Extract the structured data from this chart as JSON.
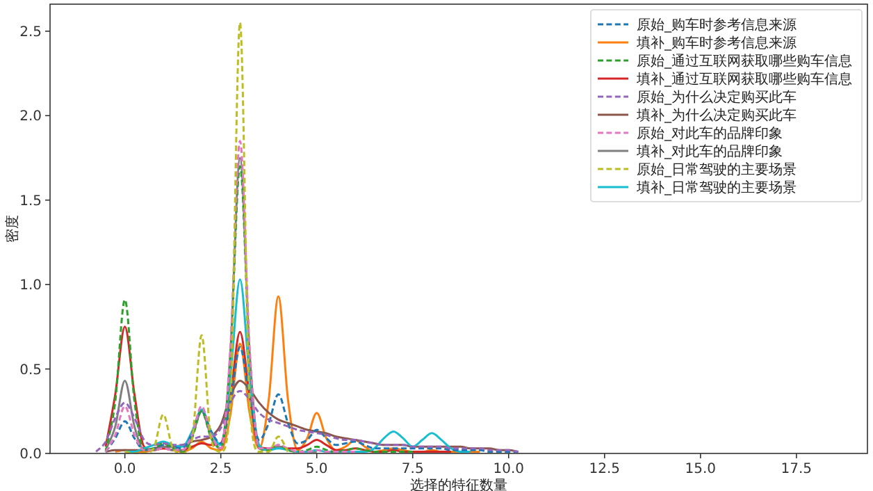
{
  "chart_data": {
    "type": "line",
    "xlabel": "选择的特征数量",
    "ylabel": "密度",
    "xlim": [
      -1.95,
      19.35
    ],
    "xticks": [
      {
        "value": 0,
        "label": "0.0"
      },
      {
        "value": 2.5,
        "label": "2.5"
      },
      {
        "value": 5,
        "label": "5.0"
      },
      {
        "value": 7.5,
        "label": "7.5"
      },
      {
        "value": 10,
        "label": "10.0"
      },
      {
        "value": 12.5,
        "label": "12.5"
      },
      {
        "value": 15,
        "label": "15.0"
      },
      {
        "value": 17.5,
        "label": "17.5"
      }
    ],
    "ylim": [
      0,
      2.66
    ],
    "yticks": [
      {
        "value": 0,
        "label": "0.0"
      },
      {
        "value": 0.5,
        "label": "0.5"
      },
      {
        "value": 1,
        "label": "1.0"
      },
      {
        "value": 1.5,
        "label": "1.5"
      },
      {
        "value": 2,
        "label": "2.0"
      },
      {
        "value": 2.5,
        "label": "2.5"
      }
    ],
    "legend": "top right",
    "x": [
      -0.75,
      -0.5,
      -0.25,
      0,
      0.25,
      0.5,
      0.75,
      1,
      1.25,
      1.5,
      1.75,
      2,
      2.25,
      2.5,
      2.75,
      3,
      3.25,
      3.5,
      3.75,
      4,
      4.25,
      4.5,
      4.75,
      5,
      5.25,
      5.5,
      5.75,
      6,
      6.25,
      6.5,
      6.75,
      7,
      7.25,
      7.5,
      7.75,
      8,
      8.25,
      8.5,
      8.75,
      9,
      9.25,
      9.5,
      9.75,
      10,
      10.25
    ],
    "series": [
      {
        "name": "原始_购车时参考信息来源",
        "color": "#1f77b4",
        "line_style": "dashed",
        "values": [
          null,
          0.01,
          0.09,
          0.19,
          0.09,
          0.02,
          0.03,
          0.05,
          0.04,
          0.03,
          0.12,
          0.25,
          0.13,
          0.06,
          0.3,
          0.63,
          0.32,
          0.08,
          0.18,
          0.35,
          0.18,
          0.06,
          0.08,
          0.14,
          0.09,
          0.05,
          0.06,
          0.07,
          0.05,
          0.03,
          0.03,
          0.03,
          0.03,
          0.03,
          0.03,
          0.03,
          0.03,
          0.02,
          0.02,
          0.02,
          0.02,
          0.01,
          0.01,
          0.01,
          0.01
        ]
      },
      {
        "name": "填补_购车时参考信息来源",
        "color": "#ff7f0e",
        "line_style": "solid",
        "values": [
          null,
          null,
          0.01,
          0.02,
          0.01,
          0.01,
          0.02,
          0.03,
          0.02,
          0.01,
          0.03,
          0.07,
          0.03,
          0.02,
          0.23,
          0.65,
          0.24,
          0.03,
          0.32,
          0.93,
          0.32,
          0.02,
          0.09,
          0.24,
          0.09,
          0.02,
          0.04,
          0.08,
          0.04,
          0.01,
          0.02,
          0.03,
          0.02,
          0.01,
          0.01,
          0.02,
          0.01,
          0.01,
          0.01,
          0.01,
          0.01,
          null,
          null,
          null,
          null
        ]
      },
      {
        "name": "原始_通过互联网获取哪些购车信息",
        "color": "#2ca02c",
        "line_style": "dashed",
        "values": [
          null,
          0.01,
          0.31,
          0.91,
          0.31,
          0.02,
          0.03,
          0.06,
          0.03,
          0.01,
          0.09,
          0.25,
          0.09,
          0.03,
          0.58,
          1.7,
          0.58,
          0.03,
          0.02,
          0.05,
          0.02,
          0.01,
          0.02,
          0.04,
          0.02,
          0.01,
          0.02,
          0.03,
          0.02,
          0.01,
          0.01,
          0.01,
          0.01,
          0.01,
          null,
          null,
          null,
          null,
          null,
          null,
          null,
          null,
          null,
          null,
          null
        ]
      },
      {
        "name": "填补_通过互联网获取哪些购车信息",
        "color": "#d62728",
        "line_style": "solid",
        "values": [
          null,
          0.04,
          0.35,
          0.75,
          0.35,
          0.04,
          0.02,
          0.03,
          0.02,
          0.02,
          0.04,
          0.06,
          0.05,
          0.06,
          0.34,
          0.72,
          0.34,
          0.04,
          0.03,
          0.04,
          0.03,
          0.03,
          0.05,
          0.08,
          0.05,
          0.02,
          0.02,
          0.03,
          0.02,
          0.01,
          0.01,
          0.02,
          0.01,
          0.01,
          0.01,
          0.01,
          0.01,
          0.01,
          null,
          null,
          null,
          null,
          null,
          null,
          null
        ]
      },
      {
        "name": "原始_为什么决定购买此车",
        "color": "#9467bd",
        "line_style": "dashed",
        "values": [
          0.01,
          0.07,
          0.21,
          0.3,
          0.21,
          0.08,
          0.05,
          0.06,
          0.05,
          0.05,
          0.08,
          0.1,
          0.1,
          0.15,
          0.3,
          0.37,
          0.32,
          0.24,
          0.2,
          0.18,
          0.16,
          0.14,
          0.13,
          0.12,
          0.11,
          0.09,
          0.08,
          0.08,
          0.07,
          0.06,
          0.05,
          0.05,
          0.05,
          0.04,
          0.04,
          0.04,
          0.04,
          0.03,
          0.03,
          0.03,
          0.03,
          0.02,
          0.02,
          0.02,
          0.01
        ]
      },
      {
        "name": "填补_为什么决定购买此车",
        "color": "#8c564b",
        "line_style": "solid",
        "values": [
          null,
          0.01,
          0.02,
          0.02,
          0.02,
          0.02,
          0.03,
          0.04,
          0.04,
          0.05,
          0.07,
          0.08,
          0.1,
          0.17,
          0.34,
          0.43,
          0.38,
          0.3,
          0.24,
          0.2,
          0.18,
          0.16,
          0.14,
          0.13,
          0.12,
          0.1,
          0.09,
          0.08,
          0.07,
          0.06,
          0.05,
          0.05,
          0.05,
          0.04,
          0.04,
          0.04,
          0.04,
          0.04,
          0.04,
          0.03,
          0.03,
          0.03,
          0.02,
          0.02,
          0.01
        ]
      },
      {
        "name": "原始_对此车的品牌印象",
        "color": "#e377c2",
        "line_style": "dashed",
        "values": [
          null,
          0.01,
          0.11,
          0.28,
          0.11,
          0.02,
          0.02,
          0.03,
          0.02,
          0.02,
          0.11,
          0.28,
          0.11,
          0.03,
          0.63,
          1.85,
          0.63,
          0.03,
          0.03,
          0.05,
          0.03,
          0.01,
          0.01,
          0.02,
          0.01,
          0.01,
          0.01,
          0.01,
          null,
          null,
          null,
          null,
          null,
          null,
          null,
          null,
          null,
          null,
          null,
          null,
          null,
          null,
          null,
          null,
          null
        ]
      },
      {
        "name": "填补_对此车的品牌印象",
        "color": "#7f7f7f",
        "line_style": "solid",
        "values": [
          null,
          0.02,
          0.16,
          0.43,
          0.16,
          0.02,
          0.02,
          0.04,
          0.02,
          0.02,
          0.1,
          0.25,
          0.1,
          0.03,
          0.6,
          1.75,
          0.6,
          0.03,
          0.02,
          0.04,
          0.02,
          0.01,
          0.01,
          0.01,
          null,
          null,
          null,
          null,
          null,
          null,
          null,
          null,
          null,
          null,
          null,
          null,
          null,
          null,
          null,
          null,
          null,
          null,
          null,
          null,
          null
        ]
      },
      {
        "name": "原始_日常驾驶的主要场景",
        "color": "#bcbd22",
        "line_style": "dashed",
        "values": [
          null,
          null,
          null,
          0.01,
          0,
          0,
          0.03,
          0.23,
          0.03,
          0,
          0.08,
          0.7,
          0.08,
          0.01,
          0.3,
          2.55,
          0.3,
          0.01,
          0.01,
          0.1,
          0.01,
          null,
          null,
          null,
          null,
          null,
          null,
          null,
          null,
          null,
          null,
          null,
          null,
          null,
          null,
          null,
          null,
          null,
          null,
          null,
          null,
          null,
          null,
          null,
          null
        ]
      },
      {
        "name": "填补_日常驾驶的主要场景",
        "color": "#17becf",
        "line_style": "solid",
        "values": [
          null,
          null,
          null,
          0.01,
          0.01,
          0.03,
          0.05,
          0.07,
          0.05,
          0.04,
          0.13,
          0.26,
          0.13,
          0.05,
          0.45,
          1.03,
          0.45,
          0.05,
          0.02,
          0.03,
          0.02,
          0.01,
          0.01,
          0.02,
          0.01,
          0.01,
          0.01,
          0.01,
          0.01,
          0.03,
          0.09,
          0.13,
          0.09,
          0.04,
          0.08,
          0.12,
          0.08,
          0.03,
          0.01,
          0.01,
          null,
          null,
          null,
          null,
          null
        ]
      }
    ]
  }
}
